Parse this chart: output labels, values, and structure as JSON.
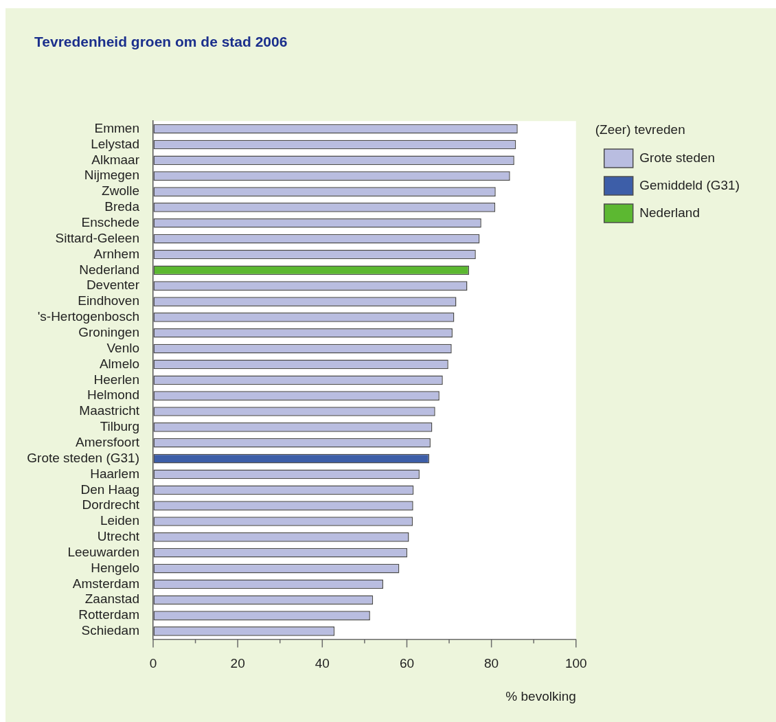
{
  "chart_data": {
    "type": "bar",
    "orientation": "horizontal",
    "title": "Tevredenheid groen om de stad 2006",
    "xlabel": "% bevolking",
    "legend_title": "(Zeer) tevreden",
    "legend": "top right",
    "categories": [
      "Emmen",
      "Lelystad",
      "Alkmaar",
      "Nijmegen",
      "Zwolle",
      "Breda",
      "Enschede",
      "Sittard-Geleen",
      "Arnhem",
      "Nederland",
      "Deventer",
      "Eindhoven",
      "'s-Hertogenbosch",
      "Groningen",
      "Venlo",
      "Almelo",
      "Heerlen",
      "Helmond",
      "Maastricht",
      "Tilburg",
      "Amersfoort",
      "Grote steden (G31)",
      "Haarlem",
      "Den Haag",
      "Dordrecht",
      "Leiden",
      "Utrecht",
      "Leeuwarden",
      "Hengelo",
      "Amsterdam",
      "Zaanstad",
      "Rotterdam",
      "Schiedam"
    ],
    "series": [
      {
        "name": "Grote steden",
        "color": "#b9bde0",
        "values": [
          86.2,
          85.8,
          85.4,
          84.4,
          81.0,
          80.9,
          77.6,
          77.2,
          76.3,
          null,
          74.3,
          71.7,
          71.2,
          70.8,
          70.6,
          69.8,
          68.5,
          67.7,
          66.7,
          66.0,
          65.6,
          null,
          63.0,
          61.6,
          61.5,
          61.4,
          60.5,
          60.1,
          58.2,
          54.4,
          52.0,
          51.3,
          42.9
        ]
      },
      {
        "name": "Gemiddeld (G31)",
        "color": "#3d5ea8",
        "values": [
          null,
          null,
          null,
          null,
          null,
          null,
          null,
          null,
          null,
          null,
          null,
          null,
          null,
          null,
          null,
          null,
          null,
          null,
          null,
          null,
          null,
          65.3,
          null,
          null,
          null,
          null,
          null,
          null,
          null,
          null,
          null,
          null,
          null
        ]
      },
      {
        "name": "Nederland",
        "color": "#5cb831",
        "values": [
          null,
          null,
          null,
          null,
          null,
          null,
          null,
          null,
          null,
          74.7,
          null,
          null,
          null,
          null,
          null,
          null,
          null,
          null,
          null,
          null,
          null,
          null,
          null,
          null,
          null,
          null,
          null,
          null,
          null,
          null,
          null,
          null,
          null
        ]
      }
    ],
    "xlim": [
      0,
      100
    ],
    "xticks": [
      0,
      {
        "value": 10,
        "label": null
      },
      20,
      {
        "value": 30,
        "label": null
      },
      40,
      {
        "value": 50,
        "label": null
      },
      60,
      {
        "value": 70,
        "label": null
      },
      80,
      {
        "value": 90,
        "label": null
      },
      100
    ]
  }
}
